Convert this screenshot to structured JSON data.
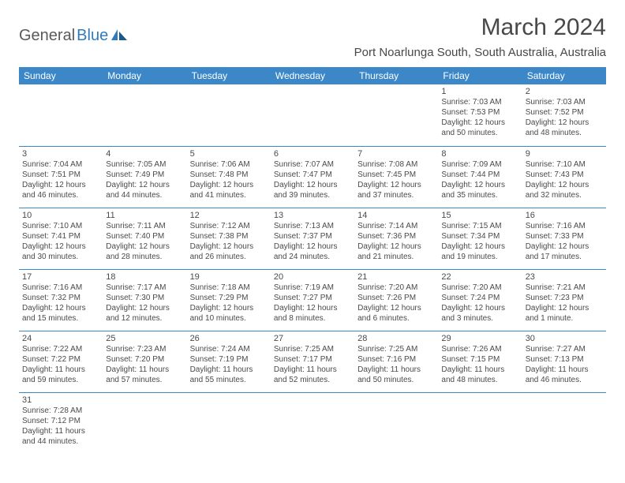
{
  "logo": {
    "text1": "General",
    "text2": "Blue"
  },
  "title": "March 2024",
  "location": "Port Noarlunga South, South Australia, Australia",
  "colors": {
    "header_bg": "#3b87c8",
    "header_text": "#ffffff",
    "border": "#3b87c8",
    "text": "#4a4a4a",
    "title_text": "#484848",
    "logo_gray": "#5a5a5a",
    "logo_blue": "#2e7bbf",
    "background": "#ffffff"
  },
  "weekdays": [
    "Sunday",
    "Monday",
    "Tuesday",
    "Wednesday",
    "Thursday",
    "Friday",
    "Saturday"
  ],
  "weeks": [
    [
      null,
      null,
      null,
      null,
      null,
      {
        "n": "1",
        "sr": "Sunrise: 7:03 AM",
        "ss": "Sunset: 7:53 PM",
        "d1": "Daylight: 12 hours",
        "d2": "and 50 minutes."
      },
      {
        "n": "2",
        "sr": "Sunrise: 7:03 AM",
        "ss": "Sunset: 7:52 PM",
        "d1": "Daylight: 12 hours",
        "d2": "and 48 minutes."
      }
    ],
    [
      {
        "n": "3",
        "sr": "Sunrise: 7:04 AM",
        "ss": "Sunset: 7:51 PM",
        "d1": "Daylight: 12 hours",
        "d2": "and 46 minutes."
      },
      {
        "n": "4",
        "sr": "Sunrise: 7:05 AM",
        "ss": "Sunset: 7:49 PM",
        "d1": "Daylight: 12 hours",
        "d2": "and 44 minutes."
      },
      {
        "n": "5",
        "sr": "Sunrise: 7:06 AM",
        "ss": "Sunset: 7:48 PM",
        "d1": "Daylight: 12 hours",
        "d2": "and 41 minutes."
      },
      {
        "n": "6",
        "sr": "Sunrise: 7:07 AM",
        "ss": "Sunset: 7:47 PM",
        "d1": "Daylight: 12 hours",
        "d2": "and 39 minutes."
      },
      {
        "n": "7",
        "sr": "Sunrise: 7:08 AM",
        "ss": "Sunset: 7:45 PM",
        "d1": "Daylight: 12 hours",
        "d2": "and 37 minutes."
      },
      {
        "n": "8",
        "sr": "Sunrise: 7:09 AM",
        "ss": "Sunset: 7:44 PM",
        "d1": "Daylight: 12 hours",
        "d2": "and 35 minutes."
      },
      {
        "n": "9",
        "sr": "Sunrise: 7:10 AM",
        "ss": "Sunset: 7:43 PM",
        "d1": "Daylight: 12 hours",
        "d2": "and 32 minutes."
      }
    ],
    [
      {
        "n": "10",
        "sr": "Sunrise: 7:10 AM",
        "ss": "Sunset: 7:41 PM",
        "d1": "Daylight: 12 hours",
        "d2": "and 30 minutes."
      },
      {
        "n": "11",
        "sr": "Sunrise: 7:11 AM",
        "ss": "Sunset: 7:40 PM",
        "d1": "Daylight: 12 hours",
        "d2": "and 28 minutes."
      },
      {
        "n": "12",
        "sr": "Sunrise: 7:12 AM",
        "ss": "Sunset: 7:38 PM",
        "d1": "Daylight: 12 hours",
        "d2": "and 26 minutes."
      },
      {
        "n": "13",
        "sr": "Sunrise: 7:13 AM",
        "ss": "Sunset: 7:37 PM",
        "d1": "Daylight: 12 hours",
        "d2": "and 24 minutes."
      },
      {
        "n": "14",
        "sr": "Sunrise: 7:14 AM",
        "ss": "Sunset: 7:36 PM",
        "d1": "Daylight: 12 hours",
        "d2": "and 21 minutes."
      },
      {
        "n": "15",
        "sr": "Sunrise: 7:15 AM",
        "ss": "Sunset: 7:34 PM",
        "d1": "Daylight: 12 hours",
        "d2": "and 19 minutes."
      },
      {
        "n": "16",
        "sr": "Sunrise: 7:16 AM",
        "ss": "Sunset: 7:33 PM",
        "d1": "Daylight: 12 hours",
        "d2": "and 17 minutes."
      }
    ],
    [
      {
        "n": "17",
        "sr": "Sunrise: 7:16 AM",
        "ss": "Sunset: 7:32 PM",
        "d1": "Daylight: 12 hours",
        "d2": "and 15 minutes."
      },
      {
        "n": "18",
        "sr": "Sunrise: 7:17 AM",
        "ss": "Sunset: 7:30 PM",
        "d1": "Daylight: 12 hours",
        "d2": "and 12 minutes."
      },
      {
        "n": "19",
        "sr": "Sunrise: 7:18 AM",
        "ss": "Sunset: 7:29 PM",
        "d1": "Daylight: 12 hours",
        "d2": "and 10 minutes."
      },
      {
        "n": "20",
        "sr": "Sunrise: 7:19 AM",
        "ss": "Sunset: 7:27 PM",
        "d1": "Daylight: 12 hours",
        "d2": "and 8 minutes."
      },
      {
        "n": "21",
        "sr": "Sunrise: 7:20 AM",
        "ss": "Sunset: 7:26 PM",
        "d1": "Daylight: 12 hours",
        "d2": "and 6 minutes."
      },
      {
        "n": "22",
        "sr": "Sunrise: 7:20 AM",
        "ss": "Sunset: 7:24 PM",
        "d1": "Daylight: 12 hours",
        "d2": "and 3 minutes."
      },
      {
        "n": "23",
        "sr": "Sunrise: 7:21 AM",
        "ss": "Sunset: 7:23 PM",
        "d1": "Daylight: 12 hours",
        "d2": "and 1 minute."
      }
    ],
    [
      {
        "n": "24",
        "sr": "Sunrise: 7:22 AM",
        "ss": "Sunset: 7:22 PM",
        "d1": "Daylight: 11 hours",
        "d2": "and 59 minutes."
      },
      {
        "n": "25",
        "sr": "Sunrise: 7:23 AM",
        "ss": "Sunset: 7:20 PM",
        "d1": "Daylight: 11 hours",
        "d2": "and 57 minutes."
      },
      {
        "n": "26",
        "sr": "Sunrise: 7:24 AM",
        "ss": "Sunset: 7:19 PM",
        "d1": "Daylight: 11 hours",
        "d2": "and 55 minutes."
      },
      {
        "n": "27",
        "sr": "Sunrise: 7:25 AM",
        "ss": "Sunset: 7:17 PM",
        "d1": "Daylight: 11 hours",
        "d2": "and 52 minutes."
      },
      {
        "n": "28",
        "sr": "Sunrise: 7:25 AM",
        "ss": "Sunset: 7:16 PM",
        "d1": "Daylight: 11 hours",
        "d2": "and 50 minutes."
      },
      {
        "n": "29",
        "sr": "Sunrise: 7:26 AM",
        "ss": "Sunset: 7:15 PM",
        "d1": "Daylight: 11 hours",
        "d2": "and 48 minutes."
      },
      {
        "n": "30",
        "sr": "Sunrise: 7:27 AM",
        "ss": "Sunset: 7:13 PM",
        "d1": "Daylight: 11 hours",
        "d2": "and 46 minutes."
      }
    ],
    [
      {
        "n": "31",
        "sr": "Sunrise: 7:28 AM",
        "ss": "Sunset: 7:12 PM",
        "d1": "Daylight: 11 hours",
        "d2": "and 44 minutes."
      },
      null,
      null,
      null,
      null,
      null,
      null
    ]
  ]
}
